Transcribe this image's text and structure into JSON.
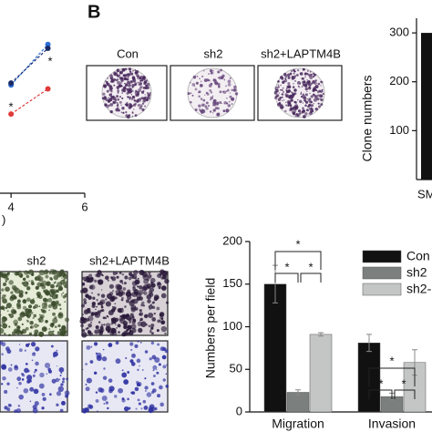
{
  "panel_label": "B",
  "images": {
    "top_labels": [
      "Con",
      "sh2",
      "sh2+LAPTM4B"
    ],
    "bottom_labels": [
      "sh2",
      "sh2+LAPTM4B"
    ]
  },
  "chart_data": [
    {
      "type": "line",
      "x_label": ")",
      "xlim": [
        3.7,
        6
      ],
      "xticks": [
        4,
        6
      ],
      "ylim": [
        0,
        1
      ],
      "series": [
        {
          "color": "#2b6fd6",
          "x": [
            4,
            5
          ],
          "values": [
            0.56,
            0.77
          ]
        },
        {
          "color": "#1a2a66",
          "x": [
            4,
            5
          ],
          "values": [
            0.57,
            0.75
          ]
        },
        {
          "color": "#e03a3a",
          "x": [
            4,
            5
          ],
          "values": [
            0.41,
            0.54
          ]
        }
      ],
      "annotations": [
        "*",
        "*"
      ]
    },
    {
      "type": "bar",
      "y_label": "Clone numbers",
      "categories": [
        "SM"
      ],
      "values": [
        300
      ],
      "color": "#111111",
      "ylim": [
        0,
        330
      ],
      "yticks": [
        100,
        200,
        300
      ]
    },
    {
      "type": "grouped-bar",
      "y_label": "Numbers per field",
      "categories": [
        "Migration",
        "Invasion"
      ],
      "ylim": [
        0,
        200
      ],
      "yticks": [
        0,
        50,
        100,
        150,
        200
      ],
      "series": [
        {
          "name": "Con",
          "color": "#111111",
          "values": [
            150,
            81
          ],
          "errors": [
            22,
            10
          ]
        },
        {
          "name": "sh2",
          "color": "#7b7f7e",
          "values": [
            23,
            18
          ],
          "errors": [
            3,
            4
          ]
        },
        {
          "name": "sh2-",
          "color": "#c4c6c5",
          "values": [
            91,
            58
          ],
          "errors": [
            2,
            15
          ]
        }
      ],
      "annotations": [
        "*",
        "*",
        "*",
        "*",
        "*",
        "*"
      ]
    }
  ]
}
